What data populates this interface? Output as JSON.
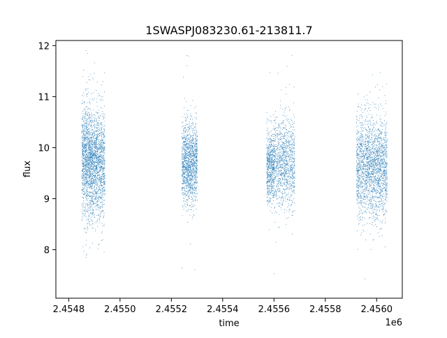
{
  "chart_data": {
    "type": "scatter",
    "title": "1SWASPJ083230.61-213811.7",
    "xlabel": "time",
    "ylabel": "flux",
    "x_offset_label": "1e6",
    "xlim": [
      2.45475,
      2.4561
    ],
    "ylim": [
      7.05,
      12.1
    ],
    "x_ticks": [
      2.4548,
      2.455,
      2.4552,
      2.4554,
      2.4556,
      2.4558,
      2.456
    ],
    "x_tick_labels": [
      "2.4548",
      "2.4550",
      "2.4552",
      "2.4554",
      "2.4556",
      "2.4558",
      "2.4560"
    ],
    "y_ticks": [
      8,
      9,
      10,
      11,
      12
    ],
    "y_tick_labels": [
      "8",
      "9",
      "10",
      "11",
      "12"
    ],
    "grid": false,
    "marker_color": "#1f77b4",
    "series": [
      {
        "clusters": [
          {
            "x_range": [
              2.45485,
              2.45488
            ],
            "center": 9.75,
            "spread": 0.55,
            "n": 900
          },
          {
            "x_range": [
              2.45488,
              2.45491
            ],
            "center": 9.7,
            "spread": 0.5,
            "n": 900
          },
          {
            "x_range": [
              2.45491,
              2.45494
            ],
            "center": 9.65,
            "spread": 0.55,
            "n": 700
          },
          {
            "x_range": [
              2.45524,
              2.45527
            ],
            "center": 9.7,
            "spread": 0.4,
            "n": 700
          },
          {
            "x_range": [
              2.45527,
              2.4553
            ],
            "center": 9.7,
            "spread": 0.4,
            "n": 700
          },
          {
            "x_range": [
              2.45557,
              2.4556
            ],
            "center": 9.65,
            "spread": 0.35,
            "n": 650
          },
          {
            "x_range": [
              2.4556,
              2.45568
            ],
            "center": 9.7,
            "spread": 0.45,
            "n": 1100
          },
          {
            "x_range": [
              2.45592,
              2.45597
            ],
            "center": 9.65,
            "spread": 0.5,
            "n": 900
          },
          {
            "x_range": [
              2.45597,
              2.45604
            ],
            "center": 9.6,
            "spread": 0.5,
            "n": 1300
          }
        ]
      }
    ]
  }
}
